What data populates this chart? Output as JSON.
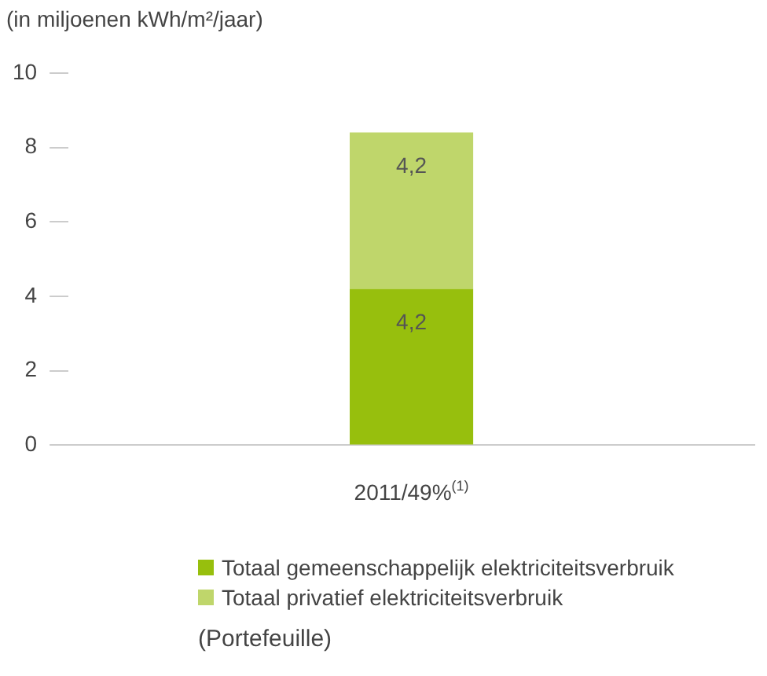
{
  "chart_data": {
    "type": "bar",
    "stacked": true,
    "ylabel": "(in miljoenen kWh/m²/jaar)",
    "categories": [
      "2011/49%$^{(1)}$"
    ],
    "series": [
      {
        "name": "Totaal gemeenschappelijk elektriciteitsverbruik",
        "color": "#97bf0d",
        "values": [
          4.2
        ],
        "value_labels": [
          "4,2"
        ]
      },
      {
        "name": "Totaal privatief elektriciteitsverbruik",
        "color": "#bfd66b",
        "values": [
          4.2
        ],
        "value_labels": [
          "4,2"
        ]
      }
    ],
    "ylim": [
      0,
      10
    ],
    "yticks": [
      0,
      2,
      4,
      6,
      8,
      10
    ],
    "grid": false,
    "legend": "bottom",
    "annotations": [
      "(Portefeuille)"
    ]
  }
}
